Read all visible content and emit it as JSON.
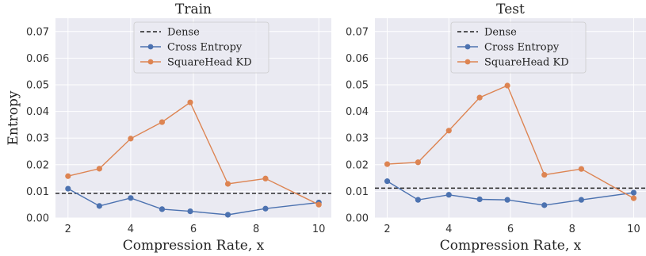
{
  "chart_data": [
    {
      "type": "line",
      "title": "Train",
      "xlabel": "Compression Rate, x",
      "ylabel": "Entropy",
      "xlim": [
        1.6,
        10.4
      ],
      "ylim": [
        0,
        0.075
      ],
      "xticks": [
        2,
        4,
        6,
        8,
        10
      ],
      "yticks": [
        0.0,
        0.01,
        0.02,
        0.03,
        0.04,
        0.05,
        0.06,
        0.07
      ],
      "ytick_labels": [
        "0.00",
        "0.01",
        "0.02",
        "0.03",
        "0.04",
        "0.05",
        "0.06",
        "0.07"
      ],
      "grid": true,
      "legend": "upper center",
      "reference": {
        "name": "Dense",
        "value": 0.0092,
        "style": "dashed",
        "color": "#222222"
      },
      "series": [
        {
          "name": "Cross Entropy",
          "color": "#4c72b0",
          "x": [
            2,
            3,
            4,
            5,
            5.9,
            7.1,
            8.3,
            10
          ],
          "values": [
            0.011,
            0.0045,
            0.0075,
            0.0033,
            0.0025,
            0.0012,
            0.0035,
            0.0058
          ]
        },
        {
          "name": "SquareHead KD",
          "color": "#dd8452",
          "x": [
            2,
            3,
            4,
            5,
            5.9,
            7.1,
            8.3,
            10
          ],
          "values": [
            0.0157,
            0.0185,
            0.0298,
            0.036,
            0.0434,
            0.0128,
            0.0148,
            0.005
          ]
        }
      ]
    },
    {
      "type": "line",
      "title": "Test",
      "xlabel": "Compression Rate, x",
      "ylabel": "",
      "xlim": [
        1.6,
        10.4
      ],
      "ylim": [
        0,
        0.075
      ],
      "xticks": [
        2,
        4,
        6,
        8,
        10
      ],
      "yticks": [
        0.0,
        0.01,
        0.02,
        0.03,
        0.04,
        0.05,
        0.06,
        0.07
      ],
      "ytick_labels": [
        "0.00",
        "0.01",
        "0.02",
        "0.03",
        "0.04",
        "0.05",
        "0.06",
        "0.07"
      ],
      "grid": true,
      "legend": "upper center",
      "reference": {
        "name": "Dense",
        "value": 0.0112,
        "style": "dashed",
        "color": "#222222"
      },
      "series": [
        {
          "name": "Cross Entropy",
          "color": "#4c72b0",
          "x": [
            2,
            3,
            4,
            5,
            5.9,
            7.1,
            8.3,
            10
          ],
          "values": [
            0.0138,
            0.0068,
            0.0087,
            0.007,
            0.0068,
            0.0048,
            0.0068,
            0.0095
          ]
        },
        {
          "name": "SquareHead KD",
          "color": "#dd8452",
          "x": [
            2,
            3,
            4,
            5,
            5.9,
            7.1,
            8.3,
            10
          ],
          "values": [
            0.0202,
            0.0209,
            0.0328,
            0.0452,
            0.0497,
            0.0162,
            0.0184,
            0.0074
          ]
        }
      ]
    }
  ]
}
